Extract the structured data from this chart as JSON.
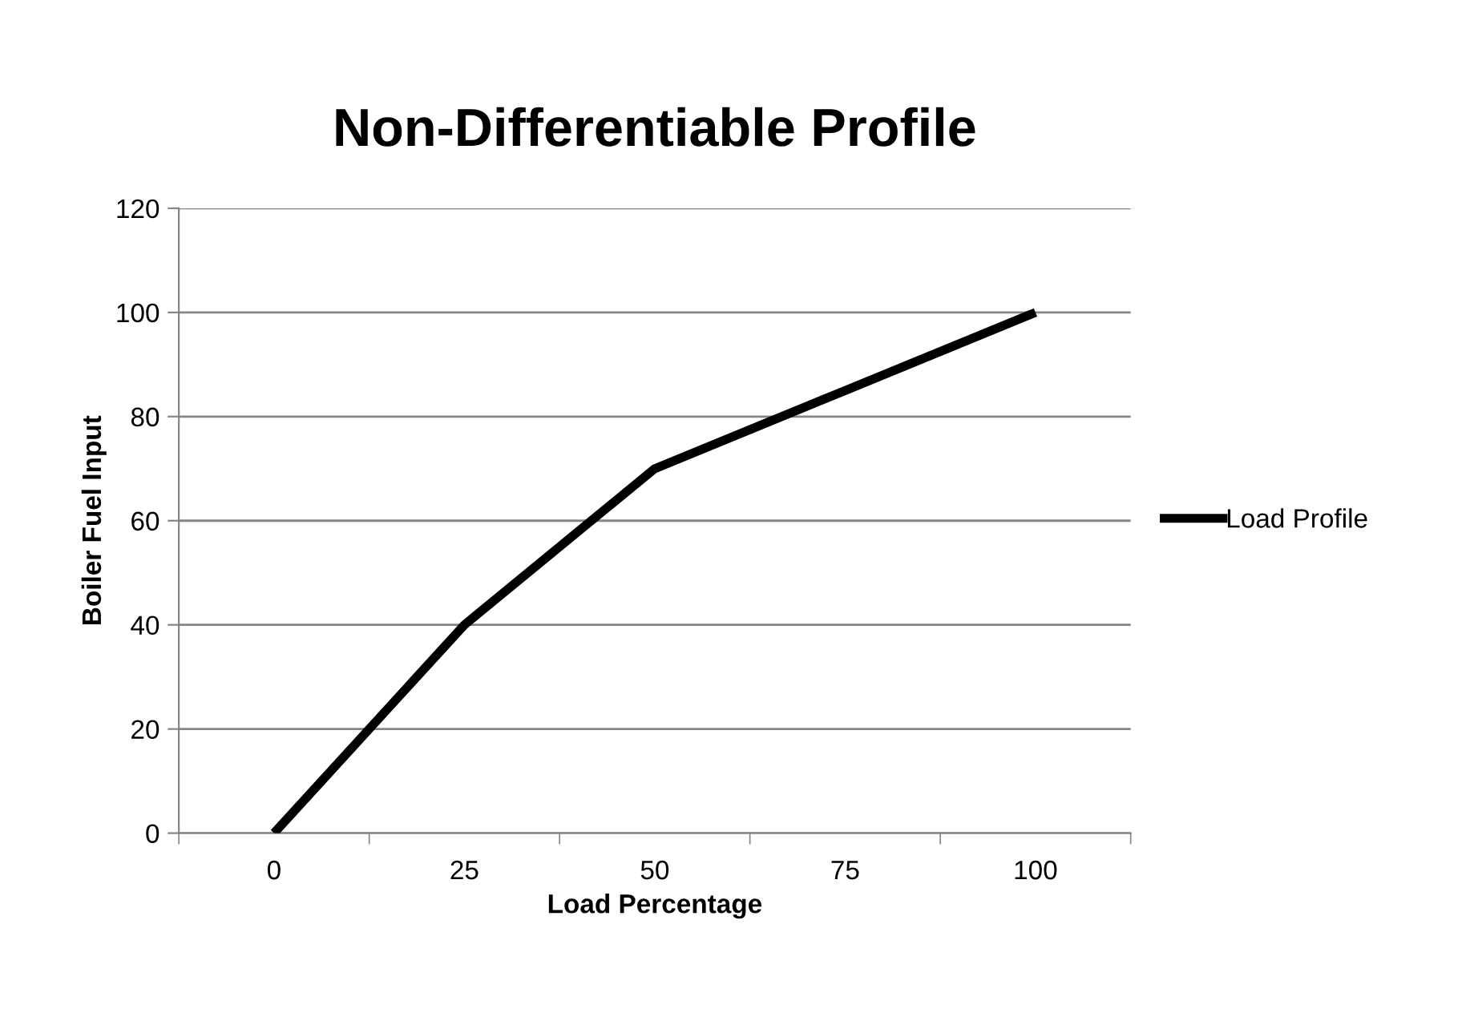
{
  "chart_data": {
    "type": "line",
    "title": "Non-Differentiable Profile",
    "xlabel": "Load Percentage",
    "ylabel": "Boiler Fuel Input",
    "categories": [
      "0",
      "25",
      "50",
      "75",
      "100"
    ],
    "series": [
      {
        "name": "Load Profile",
        "color": "#000000",
        "values": [
          0,
          40,
          70,
          85,
          100
        ]
      }
    ],
    "ylim": [
      0,
      120
    ],
    "yticks": [
      0,
      20,
      40,
      60,
      80,
      100,
      120
    ],
    "grid": "y",
    "legend": "right",
    "marker": "none",
    "line_style": "solid"
  }
}
